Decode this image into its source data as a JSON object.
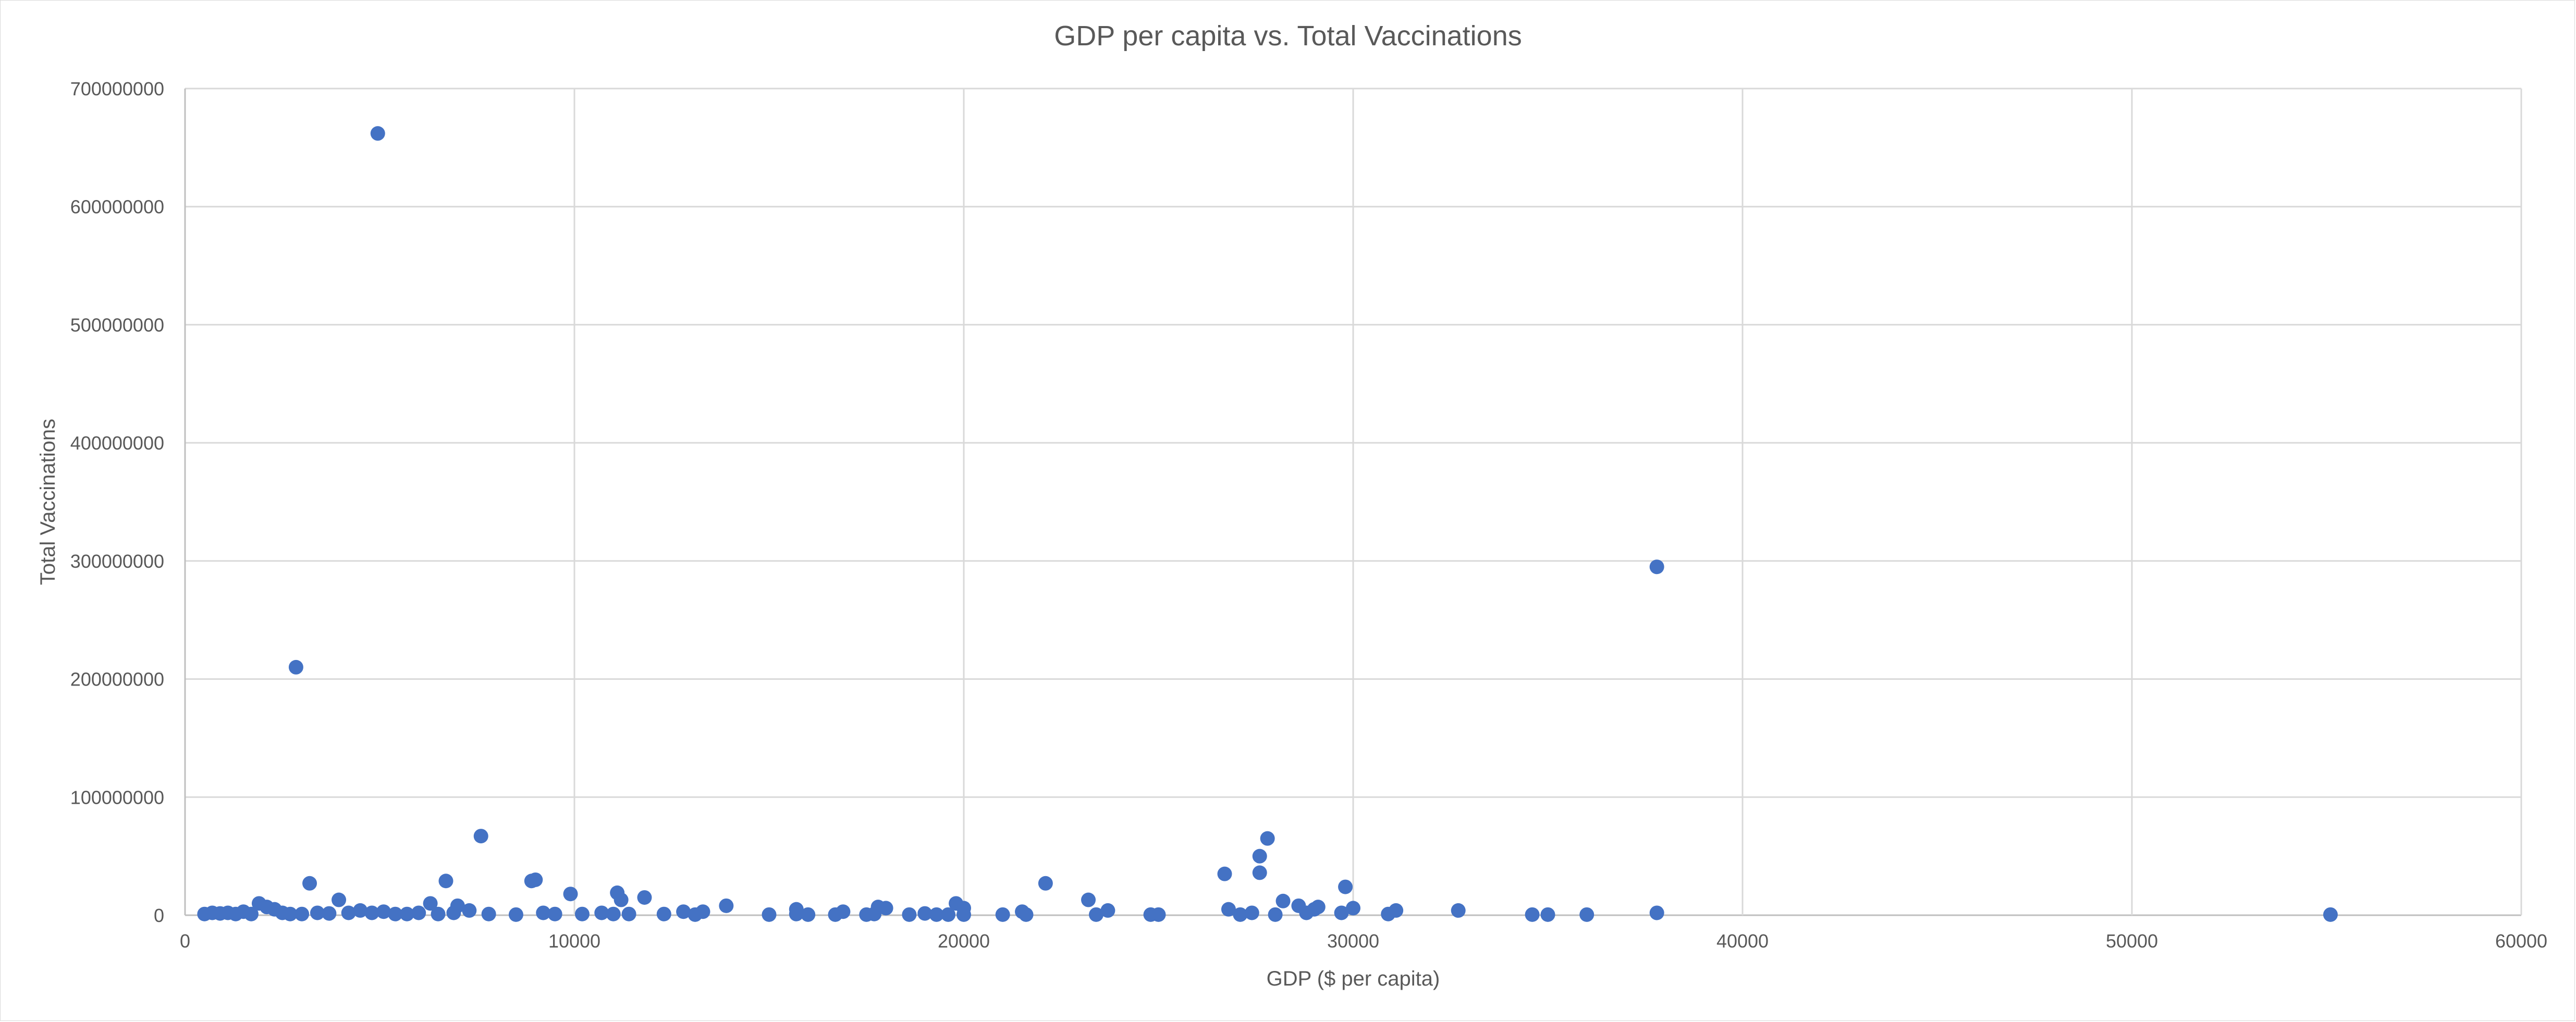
{
  "chart_data": {
    "type": "scatter",
    "title": "GDP per capita vs. Total Vaccinations",
    "xlabel": "GDP ($ per capita)",
    "ylabel": "Total Vaccinations",
    "xlim": [
      0,
      60000
    ],
    "ylim": [
      0,
      700000000
    ],
    "xticks": [
      0,
      10000,
      20000,
      30000,
      40000,
      50000,
      60000
    ],
    "yticks": [
      0,
      100000000,
      200000000,
      300000000,
      400000000,
      500000000,
      600000000,
      700000000
    ],
    "xtick_labels": [
      "0",
      "10000",
      "20000",
      "30000",
      "40000",
      "50000",
      "60000"
    ],
    "ytick_labels": [
      "0",
      "100000000",
      "200000000",
      "300000000",
      "400000000",
      "500000000",
      "600000000",
      "700000000"
    ],
    "grid": true,
    "legend": "none",
    "color": "#4472c4",
    "series": [
      {
        "points": [
          [
            4950,
            662000000
          ],
          [
            2850,
            210000000
          ],
          [
            37800,
            295000000
          ],
          [
            7600,
            67000000
          ],
          [
            27800,
            65000000
          ],
          [
            27600,
            50000000
          ],
          [
            27600,
            36000000
          ],
          [
            26700,
            35000000
          ],
          [
            3200,
            27000000
          ],
          [
            6700,
            29000000
          ],
          [
            8900,
            29000000
          ],
          [
            9000,
            30000000
          ],
          [
            22100,
            27000000
          ],
          [
            29800,
            24000000
          ],
          [
            9900,
            18000000
          ],
          [
            11100,
            19000000
          ],
          [
            11200,
            13000000
          ],
          [
            11800,
            15000000
          ],
          [
            3950,
            13000000
          ],
          [
            23200,
            13000000
          ],
          [
            28200,
            12000000
          ],
          [
            1900,
            10000000
          ],
          [
            2100,
            7000000
          ],
          [
            2300,
            5000000
          ],
          [
            6300,
            10000000
          ],
          [
            7000,
            8000000
          ],
          [
            13900,
            8000000
          ],
          [
            17800,
            7000000
          ],
          [
            18000,
            6000000
          ],
          [
            19800,
            10000000
          ],
          [
            20000,
            6000000
          ],
          [
            15700,
            5000000
          ],
          [
            28600,
            8000000
          ],
          [
            29100,
            7000000
          ],
          [
            29000,
            5000000
          ],
          [
            30000,
            6000000
          ],
          [
            31100,
            4000000
          ],
          [
            32700,
            4000000
          ],
          [
            26800,
            5000000
          ],
          [
            23700,
            4000000
          ],
          [
            12800,
            3000000
          ],
          [
            13300,
            3000000
          ],
          [
            16900,
            3000000
          ],
          [
            21500,
            3000000
          ],
          [
            500,
            1000000
          ],
          [
            700,
            2000000
          ],
          [
            900,
            1500000
          ],
          [
            1100,
            2000000
          ],
          [
            1300,
            1000000
          ],
          [
            1500,
            3000000
          ],
          [
            1700,
            1000000
          ],
          [
            2500,
            2000000
          ],
          [
            2700,
            1000000
          ],
          [
            3000,
            1000000
          ],
          [
            3400,
            2000000
          ],
          [
            3700,
            1500000
          ],
          [
            4200,
            2000000
          ],
          [
            4500,
            4000000
          ],
          [
            4800,
            2000000
          ],
          [
            5100,
            3000000
          ],
          [
            5400,
            1000000
          ],
          [
            5700,
            1000000
          ],
          [
            6000,
            2000000
          ],
          [
            6500,
            1000000
          ],
          [
            6900,
            2000000
          ],
          [
            7300,
            4000000
          ],
          [
            7800,
            1000000
          ],
          [
            8500,
            500000
          ],
          [
            9200,
            2000000
          ],
          [
            9500,
            1000000
          ],
          [
            10200,
            1000000
          ],
          [
            10700,
            2000000
          ],
          [
            11000,
            1000000
          ],
          [
            11400,
            1000000
          ],
          [
            12300,
            1000000
          ],
          [
            13100,
            500000
          ],
          [
            15000,
            500000
          ],
          [
            15700,
            1000000
          ],
          [
            16000,
            500000
          ],
          [
            16700,
            500000
          ],
          [
            17500,
            500000
          ],
          [
            17700,
            1000000
          ],
          [
            18600,
            500000
          ],
          [
            19000,
            1500000
          ],
          [
            19300,
            500000
          ],
          [
            19600,
            500000
          ],
          [
            20000,
            500000
          ],
          [
            21000,
            500000
          ],
          [
            21600,
            500000
          ],
          [
            23400,
            500000
          ],
          [
            24800,
            500000
          ],
          [
            25000,
            500000
          ],
          [
            27100,
            500000
          ],
          [
            27400,
            2000000
          ],
          [
            28000,
            500000
          ],
          [
            28800,
            2000000
          ],
          [
            29700,
            2000000
          ],
          [
            30900,
            1000000
          ],
          [
            34600,
            500000
          ],
          [
            35000,
            500000
          ],
          [
            36000,
            500000
          ],
          [
            37800,
            2000000
          ],
          [
            55100,
            500000
          ]
        ]
      }
    ]
  }
}
